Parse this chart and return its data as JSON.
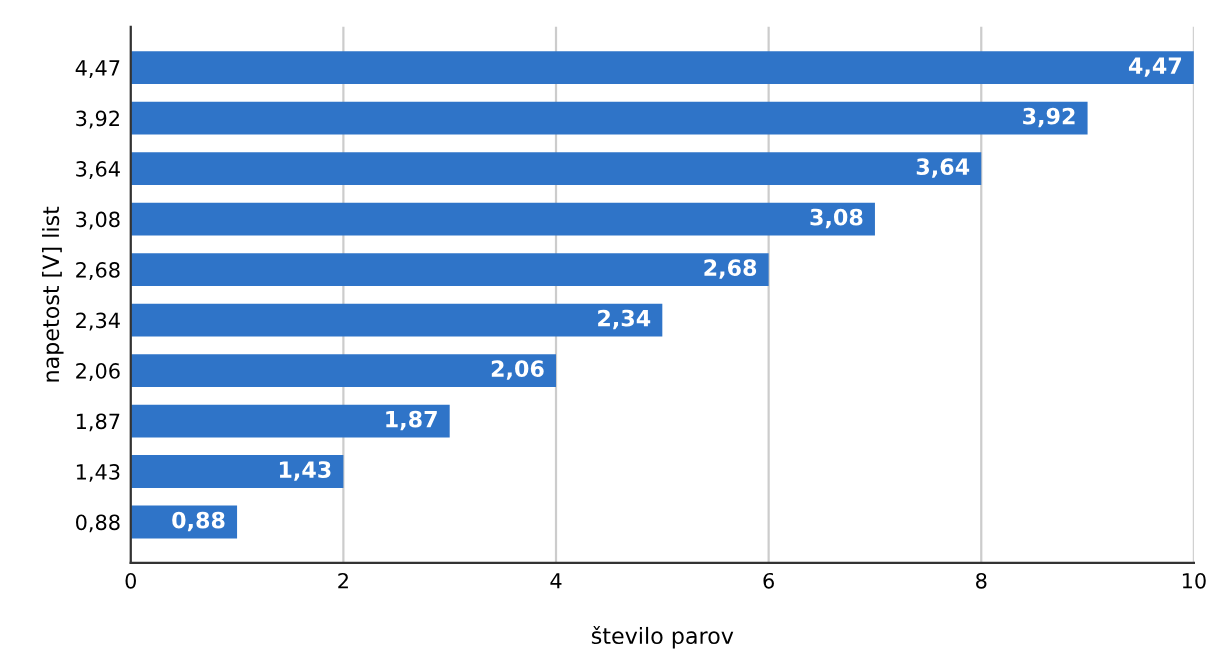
{
  "chart_data": {
    "type": "bar",
    "orientation": "horizontal",
    "xlabel": "število parov",
    "ylabel": "napetost [V] list",
    "categories": [
      "4,47",
      "3,92",
      "3,64",
      "3,08",
      "2,68",
      "2,34",
      "2,06",
      "1,87",
      "1,43",
      "0,88"
    ],
    "values": [
      10,
      9,
      8,
      7,
      6,
      5,
      4,
      3,
      2,
      1
    ],
    "annotations": [
      {
        "text": "4,47",
        "x": 10,
        "y": "4,47"
      },
      {
        "text": "3,92",
        "x": 9,
        "y": "3,92"
      },
      {
        "text": "3,64",
        "x": 8,
        "y": "3,64"
      },
      {
        "text": "3,08",
        "x": 7,
        "y": "3,08"
      },
      {
        "text": "2,68",
        "x": 6,
        "y": "2,68"
      },
      {
        "text": "2,34",
        "x": 5,
        "y": "2,34"
      },
      {
        "text": "2,06",
        "x": 4,
        "y": "2,06"
      },
      {
        "text": "1,87",
        "x": 3,
        "y": "1,87"
      },
      {
        "text": "1,43",
        "x": 2,
        "y": "1,43"
      },
      {
        "text": "0,88",
        "x": 1,
        "y": "0,88"
      }
    ],
    "color": "#2f74c8",
    "xlim": [
      0,
      10
    ],
    "xticks": [
      0,
      2,
      4,
      6,
      8,
      10
    ],
    "grid": "x"
  }
}
